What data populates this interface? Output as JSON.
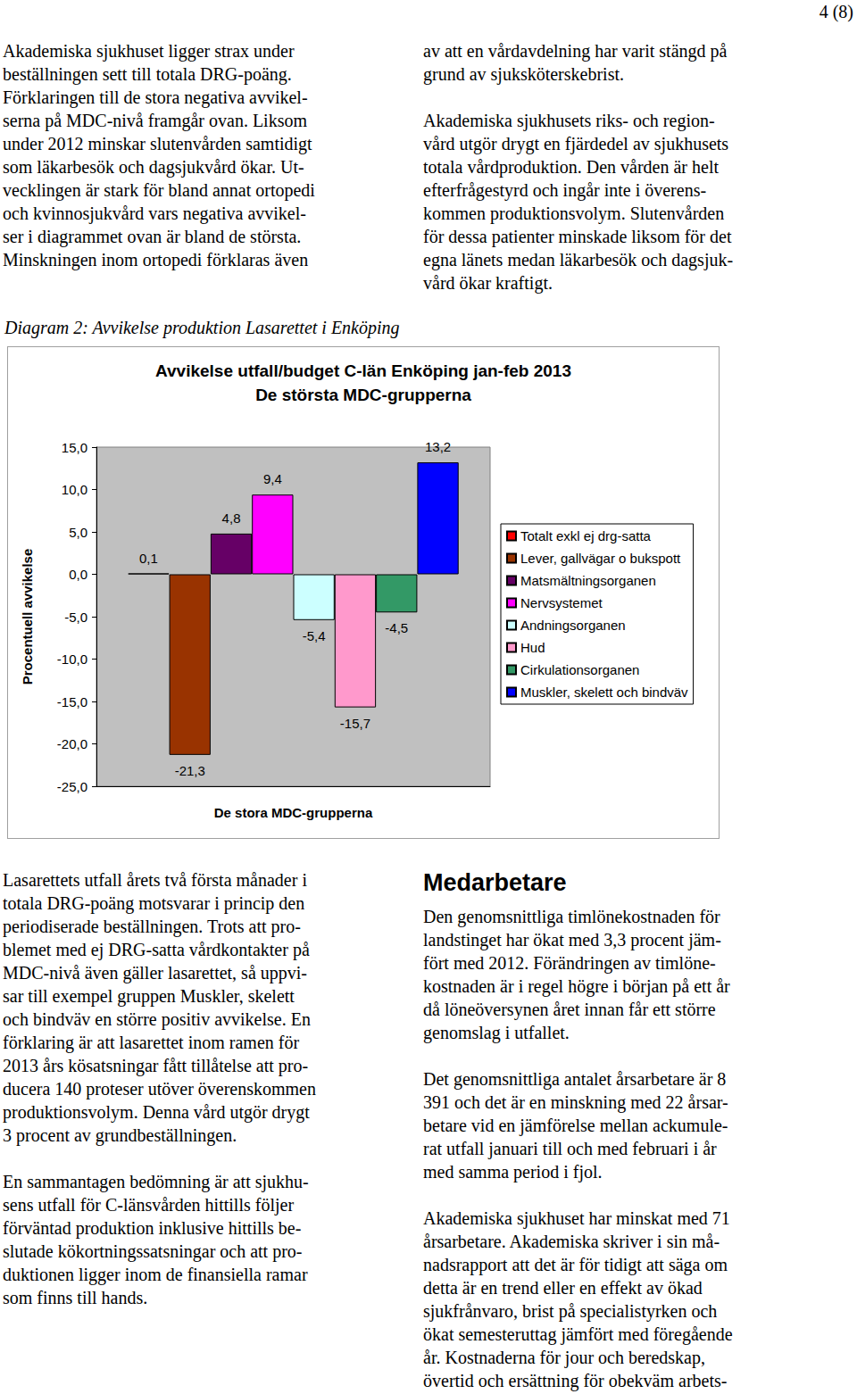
{
  "header": {
    "page": "4 (8)"
  },
  "columns_top": {
    "left": [
      [
        "Akademiska sjukhuset ligger strax under",
        "beställningen sett till totala DRG-poäng.",
        "Förklaringen till de stora negativa avvikel-",
        "serna på MDC-nivå framgår ovan. Liksom",
        "under 2012 minskar slutenvården samtidigt",
        "som läkarbesök och dagsjukvård ökar. Ut-",
        "vecklingen är stark för bland annat ortopedi",
        "och kvinnosjukvård vars negativa avvikel-",
        "ser i diagrammet ovan är bland de största.",
        "Minskningen inom ortopedi förklaras även"
      ]
    ],
    "right": [
      [
        "av att en vårdavdelning har varit stängd på",
        "grund av sjuksköterskebrist."
      ],
      [
        "Akademiska sjukhusets riks- och region-",
        "vård utgör drygt en fjärdedel av sjukhusets",
        "totala vårdproduktion. Den vården är helt",
        "efterfrågestyrd och ingår inte i överens-",
        "kommen produktionsvolym. Slutenvården",
        "för dessa patienter minskade liksom för det",
        "egna länets medan läkarbesök och dagsjuk-",
        "vård ökar kraftigt."
      ]
    ]
  },
  "caption": "Diagram 2: Avvikelse produktion Lasarettet i Enköping",
  "chart_data": {
    "type": "bar",
    "title": "Avvikelse utfall/budget C-län Enköping jan-feb 2013",
    "subtitle": "De största MDC-grupperna",
    "x_label": "De stora MDC-grupperna",
    "y_label": "Procentuell avvikelse",
    "categories": [
      null
    ],
    "series": [
      {
        "name": "Totalt exkl ej drg-satta",
        "color": "#ff0000",
        "values": [
          0.1
        ],
        "value_labels": [
          "0,1"
        ]
      },
      {
        "name": "Lever, gallvägar o bukspott",
        "color": "#993300",
        "values": [
          -21.3
        ],
        "value_labels": [
          "-21,3"
        ]
      },
      {
        "name": "Matsmältningsorganen",
        "color": "#660066",
        "values": [
          4.8
        ],
        "value_labels": [
          "4,8"
        ]
      },
      {
        "name": "Nervsystemet",
        "color": "#ff00ff",
        "values": [
          9.4
        ],
        "value_labels": [
          "9,4"
        ]
      },
      {
        "name": "Andningsorganen",
        "color": "#ccffff",
        "values": [
          -5.4
        ],
        "value_labels": [
          "-5,4"
        ]
      },
      {
        "name": "Hud",
        "color": "#ff99cc",
        "values": [
          -15.7
        ],
        "value_labels": [
          "-15,7"
        ]
      },
      {
        "name": "Cirkulationsorganen",
        "color": "#339966",
        "values": [
          -4.5
        ],
        "value_labels": [
          "-4,5"
        ]
      },
      {
        "name": "Muskler, skelett och bindväv",
        "color": "#0000ff",
        "values": [
          13.2
        ],
        "value_labels": [
          "13,2"
        ]
      }
    ],
    "ylim": [
      -25,
      15
    ],
    "yticks": [
      {
        "value": -25,
        "label": "-25,0"
      },
      {
        "value": -20,
        "label": "-20,0"
      },
      {
        "value": -15,
        "label": "-15,0"
      },
      {
        "value": -10,
        "label": "-10,0"
      },
      {
        "value": -5,
        "label": "-5,0"
      },
      {
        "value": 0,
        "label": "0,0"
      },
      {
        "value": 5,
        "label": "5,0"
      },
      {
        "value": 10,
        "label": "10,0"
      },
      {
        "value": 15,
        "label": "15,0"
      }
    ],
    "grid": false,
    "legend": "right",
    "data_labels": true
  },
  "columns_bottom": {
    "left": [
      [
        "Lasarettets utfall årets två första månader i",
        "totala DRG-poäng motsvarar i princip den",
        "periodiserade beställningen. Trots att pro-",
        "blemet med ej DRG-satta vårdkontakter på",
        "MDC-nivå även gäller lasarettet, så uppvi-",
        "sar till exempel gruppen Muskler, skelett",
        "och bindväv en större positiv avvikelse. En",
        "förklaring är att lasarettet inom ramen för",
        "2013 års kösatsningar fått tillåtelse att pro-",
        "ducera 140 proteser utöver överenskommen",
        "produktionsvolym. Denna vård utgör drygt",
        "3 procent av grundbeställningen."
      ],
      [
        "En sammantagen bedömning är att sjukhu-",
        "sens utfall för C-länsvården hittills följer",
        "förväntad produktion inklusive hittills be-",
        "slutade kökortningssatsningar och att pro-",
        "duktionen ligger inom de finansiella ramar",
        "som finns till hands."
      ]
    ],
    "right": {
      "heading": "Medarbetare",
      "paragraphs": [
        [
          "Den genomsnittliga timlönekostnaden för",
          "landstinget har ökat med 3,3 procent jäm-",
          "fört med 2012. Förändringen av timlöne-",
          "kostnaden är i regel högre i början på ett år",
          "då löneöversynen året innan får ett större",
          "genomslag i utfallet."
        ],
        [
          "Det genomsnittliga antalet årsarbetare är 8",
          "391 och det är en minskning med 22 årsar-",
          "betare vid en jämförelse mellan ackumule-",
          "rat utfall januari till och med februari i år",
          "med samma period i fjol."
        ],
        [
          "Akademiska sjukhuset har minskat med 71",
          "årsarbetare. Akademiska skriver i sin må-",
          "nadsrapport att det är för tidigt att säga om",
          "detta är en trend eller en effekt av ökad",
          "sjukfrånvaro, brist på specialistyrken och",
          "ökat semesteruttag jämfört med föregående",
          "år. Kostnaderna för jour och beredskap,",
          "övertid och ersättning för obekväm arbets-"
        ]
      ]
    }
  }
}
